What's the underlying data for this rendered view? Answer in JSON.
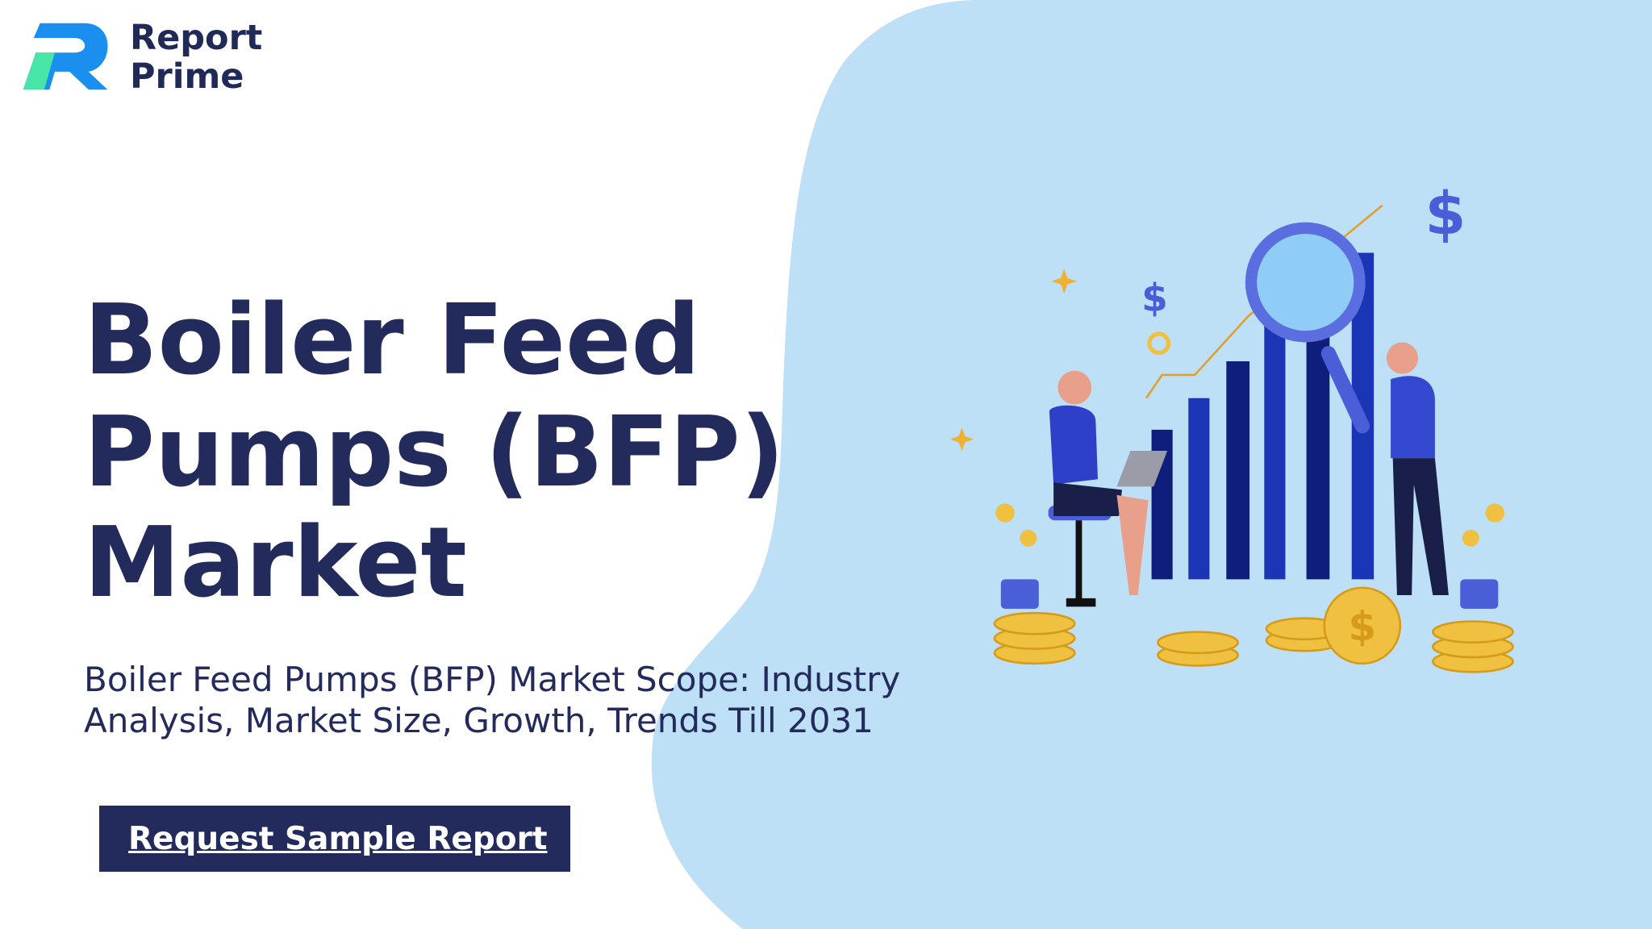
{
  "logo": {
    "line1": "Report",
    "line2": "Prime"
  },
  "title": {
    "lines": [
      "Boiler Feed",
      "Pumps (BFP)",
      "Market"
    ]
  },
  "subtitle": {
    "lines": [
      "Boiler Feed Pumps (BFP) Market Scope: Industry",
      "Analysis, Market Size, Growth, Trends Till 2031"
    ]
  },
  "button": {
    "label": "Request Sample Report"
  }
}
